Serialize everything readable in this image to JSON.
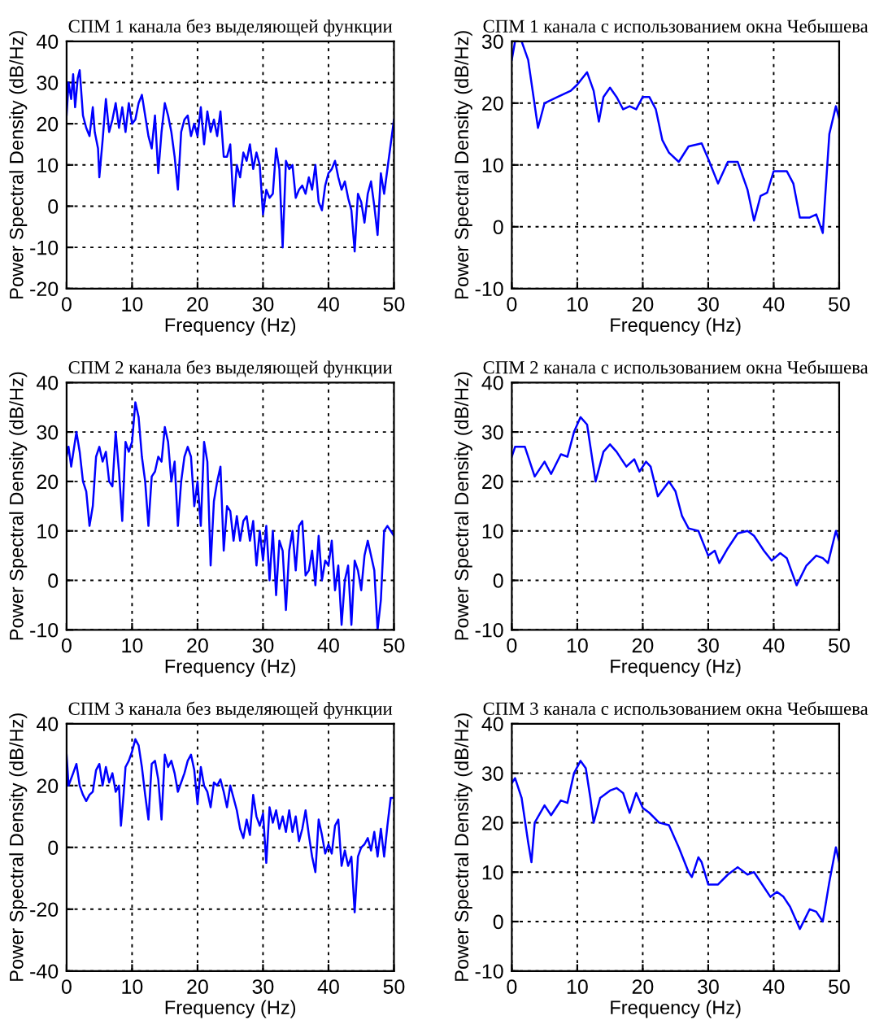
{
  "chart_data": [
    {
      "type": "line",
      "title": "СПМ 1 канала без выделяющей функции",
      "xlabel": "Frequency (Hz)",
      "ylabel": "Power Spectral Density (dB/Hz)",
      "xlim": [
        0,
        50
      ],
      "ylim": [
        -20,
        40
      ],
      "xticks": [
        0,
        10,
        20,
        30,
        40,
        50
      ],
      "yticks": [
        -20,
        -10,
        0,
        10,
        20,
        30,
        40
      ],
      "grid": true,
      "x": [
        0,
        0.3,
        0.7,
        1,
        1.3,
        1.7,
        2,
        2.5,
        3,
        3.5,
        4,
        4.3,
        4.8,
        5,
        5.5,
        6,
        6.5,
        7,
        7.5,
        8,
        8.5,
        9,
        9.5,
        10,
        10.5,
        11,
        11.5,
        12,
        12.5,
        13,
        13.5,
        14,
        14.5,
        15,
        15.5,
        16,
        16.5,
        17,
        17.5,
        18,
        18.5,
        19,
        19.5,
        20,
        20.5,
        21,
        21.5,
        22,
        22.5,
        23,
        23.5,
        24,
        24.5,
        25,
        25.5,
        26,
        26.5,
        27,
        27.5,
        28,
        28.5,
        29,
        29.5,
        30,
        30.5,
        31,
        31.5,
        32,
        32.5,
        33,
        33.5,
        34,
        34.5,
        35,
        35.5,
        36,
        36.5,
        37,
        37.5,
        38,
        38.5,
        39,
        39.5,
        40,
        40.5,
        41,
        41.5,
        42,
        42.5,
        43,
        43.5,
        44,
        44.5,
        45,
        45.5,
        46,
        46.5,
        47,
        47.5,
        48,
        48.5,
        50
      ],
      "series": [
        {
          "color": "#0000ff",
          "values": [
            22,
            30,
            26,
            32,
            24,
            31,
            33,
            22,
            19,
            17,
            24,
            18,
            14,
            7,
            16,
            26,
            18,
            21,
            25,
            19,
            24,
            18,
            25,
            20,
            21,
            25,
            27,
            22,
            17,
            14,
            22,
            8,
            18,
            25,
            22,
            18,
            12,
            4,
            18,
            21,
            22,
            17,
            20,
            17,
            24,
            15,
            23,
            18,
            21,
            17,
            23,
            12,
            12,
            15,
            0,
            10,
            7,
            13,
            11,
            15,
            9,
            13,
            10,
            -2,
            4,
            2,
            3,
            14,
            9,
            -10,
            11,
            9,
            10,
            2,
            4,
            5,
            3,
            7,
            4,
            10,
            1,
            -1,
            5,
            8,
            9,
            11,
            7,
            4,
            6,
            2,
            -1,
            -11,
            3,
            1,
            -4,
            3,
            6,
            0,
            -7,
            8,
            3,
            21
          ]
        }
      ]
    },
    {
      "type": "line",
      "title": "СПМ 1 канала с использованием окна Чебышева",
      "xlabel": "Frequency (Hz)",
      "ylabel": "Power Spectral Density (dB/Hz)",
      "xlim": [
        0,
        50
      ],
      "ylim": [
        -10,
        30
      ],
      "xticks": [
        0,
        10,
        20,
        30,
        40,
        50
      ],
      "yticks": [
        -10,
        0,
        10,
        20,
        30
      ],
      "grid": true,
      "x": [
        0,
        0.5,
        1.5,
        2.5,
        4,
        5,
        7,
        9,
        10,
        11.5,
        12.5,
        13.3,
        14,
        15,
        16,
        17,
        18,
        19,
        20,
        21,
        22,
        23,
        24,
        25.5,
        27,
        29,
        30,
        31.5,
        33,
        34.5,
        36,
        37,
        38,
        39,
        40,
        42,
        43,
        44,
        45.5,
        46.5,
        47.5,
        48.5,
        49.5,
        50
      ],
      "series": [
        {
          "color": "#0000ff",
          "values": [
            27,
            30,
            30,
            27,
            16,
            20,
            21,
            22,
            23,
            25,
            22,
            17,
            21,
            22.5,
            21,
            19,
            19.5,
            19,
            21,
            21,
            19,
            14,
            12,
            10.5,
            13,
            13.5,
            11,
            7,
            10.5,
            10.5,
            6,
            1,
            5,
            5.5,
            9,
            9,
            7,
            1.5,
            1.5,
            2,
            -1,
            15,
            19.5,
            17.5
          ]
        }
      ]
    },
    {
      "type": "line",
      "title": "СПМ 2 канала без выделяющей функции",
      "xlabel": "Frequency (Hz)",
      "ylabel": "Power Spectral Density (dB/Hz)",
      "xlim": [
        0,
        50
      ],
      "ylim": [
        -10,
        40
      ],
      "xticks": [
        0,
        10,
        20,
        30,
        40,
        50
      ],
      "yticks": [
        -10,
        0,
        10,
        20,
        30,
        40
      ],
      "grid": true,
      "x": [
        0,
        0.3,
        0.7,
        1.5,
        2,
        2.5,
        3,
        3.5,
        4,
        4.5,
        5,
        5.5,
        6,
        6.5,
        7,
        7.5,
        8,
        8.5,
        9,
        9.5,
        10,
        10.5,
        11,
        11.5,
        12,
        12.5,
        13,
        13.5,
        14,
        14.5,
        15,
        15.5,
        16,
        16.5,
        17,
        17.5,
        18,
        18.5,
        19,
        19.5,
        20,
        20.5,
        21,
        21.5,
        22,
        22.5,
        23,
        23.5,
        24,
        24.5,
        25,
        25.5,
        26,
        26.5,
        27,
        27.5,
        28,
        28.5,
        29,
        29.5,
        30,
        30.5,
        31,
        31.5,
        32,
        32.5,
        33,
        33.5,
        34,
        34.5,
        35,
        35.5,
        36,
        36.5,
        37,
        37.5,
        38,
        38.5,
        39,
        39.5,
        40,
        40.5,
        41,
        41.5,
        42,
        42.5,
        43,
        43.5,
        44,
        44.5,
        45,
        45.5,
        46,
        46.5,
        47,
        47.5,
        48,
        48.5,
        49,
        50
      ],
      "series": [
        {
          "color": "#0000ff",
          "values": [
            25,
            27,
            23,
            30,
            26,
            20,
            18,
            11,
            15,
            25,
            27,
            24,
            26,
            20,
            19,
            30,
            22,
            12,
            28,
            26,
            28,
            36,
            33,
            25,
            20,
            11,
            21,
            22,
            25,
            24,
            31,
            28,
            20,
            24,
            11,
            20,
            25,
            27,
            25,
            15,
            20,
            11,
            28,
            24,
            3,
            16,
            20,
            23,
            6,
            15,
            14,
            8,
            13,
            8,
            12,
            13,
            8,
            12,
            3,
            10,
            4,
            11,
            0,
            10,
            -3,
            8,
            6,
            -6,
            6,
            10,
            2,
            11,
            12,
            1,
            2,
            6,
            -1,
            9,
            0,
            4,
            3,
            8,
            -2,
            3,
            -9,
            0,
            3,
            -9,
            4,
            2,
            -2,
            5,
            8,
            5,
            2,
            -10,
            -4,
            10,
            11,
            9
          ]
        }
      ]
    },
    {
      "type": "line",
      "title": "СПМ 2 канала с использованием окна Чебышева",
      "xlabel": "Frequency (Hz)",
      "ylabel": "Power Spectral Density (dB/Hz)",
      "xlim": [
        0,
        50
      ],
      "ylim": [
        -10,
        40
      ],
      "xticks": [
        0,
        10,
        20,
        30,
        40,
        50
      ],
      "yticks": [
        -10,
        0,
        10,
        20,
        30,
        40
      ],
      "grid": true,
      "x": [
        0,
        0.5,
        2,
        3.5,
        5,
        6,
        7.5,
        8.5,
        9.5,
        10.5,
        11.5,
        12.8,
        14,
        15,
        16,
        17.5,
        18.7,
        19.5,
        20.5,
        21.2,
        22.3,
        24,
        25,
        26,
        27,
        28.5,
        30,
        31,
        31.7,
        33,
        34.5,
        36,
        37,
        38.5,
        39.7,
        41,
        42,
        43.5,
        45,
        46.5,
        47.5,
        48.3,
        49.5,
        50
      ],
      "series": [
        {
          "color": "#0000ff",
          "values": [
            25,
            27,
            27,
            21,
            24,
            21.5,
            25.5,
            25,
            30,
            33,
            31.5,
            20,
            26,
            27.5,
            26,
            23,
            24.5,
            22,
            24,
            23,
            17,
            20,
            18,
            13,
            10.5,
            10,
            5,
            6,
            3.5,
            6.5,
            9.5,
            10,
            9,
            6,
            4,
            5.5,
            4.5,
            -1,
            3,
            5,
            4.5,
            3.5,
            10,
            8
          ]
        }
      ]
    },
    {
      "type": "line",
      "title": "СПМ 3 канала без выделяющей функции",
      "xlabel": "Frequency (Hz)",
      "ylabel": "Power Spectral Density (dB/Hz)",
      "xlim": [
        0,
        50
      ],
      "ylim": [
        -40,
        40
      ],
      "xticks": [
        0,
        10,
        20,
        30,
        40,
        50
      ],
      "yticks": [
        -40,
        -20,
        0,
        20,
        40
      ],
      "grid": true,
      "x": [
        0,
        0.3,
        1,
        1.5,
        2,
        2.5,
        3,
        3.5,
        4,
        4.5,
        5,
        5.5,
        6,
        6.5,
        7,
        7.5,
        8,
        8.3,
        8.7,
        9,
        9.5,
        10,
        10.5,
        11,
        11.5,
        12,
        12.5,
        13,
        13.5,
        14,
        14.5,
        15,
        15.5,
        16,
        16.5,
        17,
        17.5,
        18,
        18.5,
        19,
        19.5,
        20,
        20.5,
        21,
        21.5,
        22,
        22.5,
        23,
        23.5,
        24,
        24.5,
        25,
        25.5,
        26,
        26.5,
        27,
        27.5,
        28,
        28.5,
        29,
        29.5,
        30,
        30.5,
        31,
        31.5,
        32,
        32.5,
        33,
        33.5,
        34,
        34.5,
        35,
        35.5,
        36,
        36.5,
        37,
        37.5,
        38,
        38.5,
        39,
        39.5,
        40,
        40.5,
        41,
        41.5,
        42,
        42.5,
        43,
        43.5,
        44,
        44.5,
        45,
        45.5,
        46,
        46.5,
        47,
        47.5,
        48,
        48.5,
        49,
        49.5,
        50
      ],
      "series": [
        {
          "color": "#0000ff",
          "values": [
            30,
            20,
            24,
            27,
            20,
            17,
            15,
            17,
            18,
            25,
            27,
            20,
            26,
            21,
            24,
            18,
            20,
            7,
            17,
            26,
            28,
            31,
            35,
            33,
            26,
            17,
            9,
            27,
            28,
            22,
            9,
            30,
            26,
            28,
            24,
            18,
            21,
            24,
            28,
            30,
            25,
            14,
            26,
            20,
            18,
            13,
            21,
            20,
            22,
            18,
            13,
            20,
            16,
            12,
            6,
            3,
            9,
            4,
            17,
            10,
            7,
            11,
            -5,
            13,
            8,
            12,
            6,
            10,
            5,
            12,
            5,
            10,
            2,
            6,
            12,
            4,
            -3,
            -8,
            9,
            4,
            -2,
            1,
            -2,
            7,
            9,
            -6,
            -1,
            -6,
            -3,
            -21,
            -3,
            0,
            1,
            3,
            -1,
            5,
            -3,
            6,
            -3,
            7,
            16,
            16
          ]
        }
      ]
    },
    {
      "type": "line",
      "title": "СПМ 3 канала с использованием окна Чебышева",
      "xlabel": "Frequency (Hz)",
      "ylabel": "Power Spectral Density (dB/Hz)",
      "xlim": [
        0,
        50
      ],
      "ylim": [
        -10,
        40
      ],
      "xticks": [
        0,
        10,
        20,
        30,
        40,
        50
      ],
      "yticks": [
        -10,
        0,
        10,
        20,
        30,
        40
      ],
      "grid": true,
      "x": [
        0,
        0.5,
        1.5,
        2.5,
        3,
        3.5,
        5,
        6,
        7.5,
        8.5,
        9.5,
        10.5,
        11.3,
        12,
        12.5,
        13.5,
        15,
        16,
        17,
        18,
        19,
        20,
        21,
        22.5,
        24,
        25.5,
        27,
        27.5,
        28.5,
        29,
        30,
        31.5,
        33,
        34.5,
        36,
        37,
        38.5,
        39.5,
        40.5,
        41.5,
        42.5,
        44,
        45.5,
        46.5,
        47.5,
        48.5,
        49.5,
        50
      ],
      "series": [
        {
          "color": "#0000ff",
          "values": [
            28,
            29,
            25,
            16,
            12,
            20,
            23.5,
            21.5,
            24.5,
            24,
            30,
            32.5,
            31,
            25,
            20,
            25,
            26.5,
            27,
            26,
            22,
            26,
            23,
            22,
            20,
            19.5,
            15,
            10,
            9,
            13,
            12,
            7.5,
            7.5,
            9.5,
            11,
            9.5,
            10,
            7,
            5,
            6,
            5,
            3,
            -1.5,
            2.5,
            2,
            0,
            8,
            15,
            12
          ]
        }
      ]
    }
  ]
}
